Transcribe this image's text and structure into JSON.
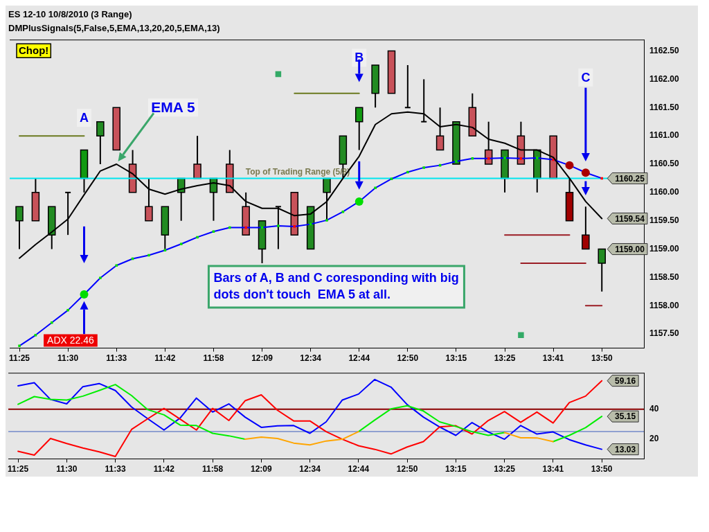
{
  "chart_data": [
    {
      "type": "candlestick",
      "title": "ES 12-10 10/8/2010 (3 Range)",
      "subtitle": "DMPlusSignals(5,False,5,EMA,13,20,20,5,EMA,13)",
      "categories": [
        "11:25",
        null,
        null,
        "11:30",
        null,
        null,
        "11:33",
        null,
        null,
        "11:42",
        null,
        null,
        "11:58",
        null,
        null,
        "12:09",
        null,
        null,
        "12:34",
        null,
        null,
        "12:44",
        null,
        null,
        "12:50",
        null,
        null,
        "13:15",
        null,
        null,
        "13:25",
        null,
        null,
        "13:41",
        null,
        null,
        "13:50"
      ],
      "ohlc": [
        [
          1159.5,
          1159.75,
          1159.0,
          1159.75
        ],
        [
          1160.0,
          1160.25,
          1159.5,
          1159.5
        ],
        [
          1159.25,
          1159.75,
          1159.0,
          1159.75
        ],
        [
          1160.0,
          1160.0,
          1159.25,
          1160.0
        ],
        [
          1160.25,
          1160.75,
          1160.0,
          1160.75
        ],
        [
          1161.0,
          1161.25,
          1160.5,
          1161.25
        ],
        [
          1161.5,
          1161.5,
          1160.75,
          1160.75
        ],
        [
          1160.5,
          1160.75,
          1160.0,
          1160.0
        ],
        [
          1159.75,
          1160.25,
          1159.5,
          1159.5
        ],
        [
          1159.25,
          1159.75,
          1159.0,
          1159.75
        ],
        [
          1160.0,
          1160.25,
          1159.5,
          1160.25
        ],
        [
          1160.5,
          1161.0,
          1160.25,
          1160.25
        ],
        [
          1160.0,
          1160.25,
          1159.5,
          1160.25
        ],
        [
          1160.5,
          1160.75,
          1160.0,
          1160.0
        ],
        [
          1159.75,
          1160.0,
          1159.25,
          1159.25
        ],
        [
          1159.0,
          1159.5,
          1158.75,
          1159.5
        ],
        [
          1159.75,
          1159.75,
          1159.0,
          1159.75
        ],
        [
          1160.0,
          1160.0,
          1159.25,
          1159.25
        ],
        [
          1159.0,
          1159.75,
          1159.0,
          1159.75
        ],
        [
          1160.0,
          1160.25,
          1159.5,
          1160.25
        ],
        [
          1160.5,
          1161.0,
          1160.25,
          1161.0
        ],
        [
          1161.25,
          1161.5,
          1160.75,
          1161.5
        ],
        [
          1161.75,
          1162.25,
          1161.5,
          1162.25
        ],
        [
          1162.5,
          1162.5,
          1161.75,
          1161.75
        ],
        [
          1161.5,
          1162.25,
          1161.5,
          1161.5
        ],
        [
          1161.25,
          1162.0,
          1161.25,
          1161.25
        ],
        [
          1161.0,
          1161.5,
          1160.75,
          1160.75
        ],
        [
          1160.5,
          1161.25,
          1160.5,
          1161.25
        ],
        [
          1161.5,
          1161.75,
          1161.0,
          1161.0
        ],
        [
          1160.75,
          1161.25,
          1160.5,
          1160.5
        ],
        [
          1160.25,
          1160.75,
          1160.0,
          1160.75
        ],
        [
          1161.0,
          1161.25,
          1160.5,
          1160.5
        ],
        [
          1160.25,
          1160.75,
          1160.0,
          1160.75
        ],
        [
          1161.0,
          1161.0,
          1160.25,
          1160.25
        ],
        [
          1160.0,
          1160.25,
          1159.5,
          1159.5
        ],
        [
          1159.25,
          1159.75,
          1159.0,
          1159.0
        ],
        [
          1158.75,
          1159.0,
          1158.25,
          1159.0
        ]
      ],
      "colors": [
        "#228b22",
        "#c8525a",
        "#228b22",
        "#000000",
        "#119911",
        "#228b22",
        "#c8525a",
        "#c8525a",
        "#c8525a",
        "#228b22",
        "#228b22",
        "#c8525a",
        "#228b22",
        "#c8525a",
        "#c8525a",
        "#228b22",
        "#000000",
        "#c8525a",
        "#228b22",
        "#228b22",
        "#228b22",
        "#119911",
        "#228b22",
        "#c8525a",
        "#000000",
        "#000000",
        "#c8525a",
        "#228b22",
        "#c8525a",
        "#c8525a",
        "#228b22",
        "#c8525a",
        "#228b22",
        "#c8525a",
        "#a00000",
        "#a00000",
        "#228b22"
      ],
      "series": [
        {
          "type": "line",
          "color": "#0000ff",
          "marker": "square",
          "values": [
            1157.29,
            1157.48,
            1157.7,
            1157.92,
            1158.2,
            1158.49,
            1158.71,
            1158.83,
            1158.89,
            1158.98,
            1159.09,
            1159.21,
            1159.31,
            1159.38,
            1159.38,
            1159.38,
            1159.41,
            1159.4,
            1159.44,
            1159.51,
            1159.66,
            1159.84,
            1160.08,
            1160.24,
            1160.36,
            1160.44,
            1160.48,
            1160.55,
            1160.6,
            1160.6,
            1160.61,
            1160.6,
            1160.61,
            1160.58,
            1160.48,
            1160.35,
            1160.25
          ],
          "colors": [
            "#00dd00",
            "#00dd00",
            "#00dd00",
            "#00dd00",
            "#00dd00",
            "#00dd00",
            "#00dd00",
            "#00dd00",
            "#00dd00",
            "#00dd00",
            "#00dd00",
            "#00dd00",
            "#00dd00",
            "#00dd00",
            "#ff0000",
            "#00dd00",
            "#00dd00",
            "#ff0000",
            "#00dd00",
            "#00dd00",
            "#00dd00",
            "#00dd00",
            "#00dd00",
            "#00dd00",
            "#00dd00",
            "#00dd00",
            "#00dd00",
            "#00dd00",
            "#00dd00",
            "#ff0000",
            "#00dd00",
            "#ff0000",
            "#00dd00",
            "#ff0000",
            "#ff8c00",
            "#ff8c00",
            "#ff0000"
          ],
          "value_labels": [
            null,
            null,
            null,
            null,
            null,
            null,
            null,
            null,
            null,
            null,
            null,
            null,
            null,
            null,
            null,
            null,
            null,
            null,
            null,
            null,
            null,
            null,
            null,
            null,
            null,
            null,
            null,
            null,
            null,
            null,
            null,
            null,
            null,
            null,
            null,
            null,
            "1160.25"
          ]
        },
        {
          "type": "line",
          "color": "#000000",
          "values": [
            1158.84,
            1159.08,
            1159.3,
            1159.53,
            1159.96,
            1160.38,
            1160.5,
            1160.33,
            1160.06,
            1159.97,
            1160.06,
            1160.12,
            1160.17,
            1160.12,
            1159.84,
            1159.72,
            1159.72,
            1159.59,
            1159.62,
            1159.84,
            1160.25,
            1160.64,
            1161.2,
            1161.39,
            1161.42,
            1161.39,
            1161.16,
            1161.2,
            1161.15,
            1160.94,
            1160.87,
            1160.75,
            1160.75,
            1160.62,
            1160.25,
            1159.84,
            1159.54
          ],
          "value_labels": [
            null,
            null,
            null,
            null,
            null,
            null,
            null,
            null,
            null,
            null,
            null,
            null,
            null,
            null,
            null,
            null,
            null,
            null,
            null,
            null,
            null,
            null,
            null,
            null,
            null,
            null,
            null,
            null,
            null,
            null,
            null,
            null,
            null,
            null,
            null,
            null,
            "1159.54"
          ]
        },
        {
          "type": "line",
          "color": "#6b7a1f",
          "values": [
            1161.0,
            1161.0,
            1161.0,
            1161.0,
            1161.0,
            null,
            null,
            null,
            null,
            null,
            null,
            null,
            null,
            null,
            null,
            null,
            null,
            null,
            null,
            null,
            null,
            null,
            null,
            null,
            null,
            null,
            null,
            null,
            null,
            null,
            null,
            null,
            null,
            null,
            null,
            null,
            null
          ]
        },
        {
          "type": "line",
          "color": "#6b7a1f",
          "values": [
            null,
            null,
            null,
            null,
            null,
            null,
            null,
            null,
            null,
            null,
            null,
            null,
            null,
            null,
            null,
            null,
            null,
            1161.75,
            1161.75,
            1161.75,
            1161.75,
            1161.75,
            null,
            null,
            null,
            null,
            null,
            null,
            null,
            null,
            null,
            null,
            null,
            null,
            null,
            null,
            null
          ]
        },
        {
          "type": "line",
          "color": "#9b1c24",
          "values": [
            null,
            null,
            null,
            null,
            null,
            null,
            null,
            null,
            null,
            null,
            null,
            null,
            null,
            null,
            null,
            null,
            null,
            null,
            null,
            null,
            null,
            null,
            null,
            null,
            null,
            null,
            null,
            null,
            null,
            null,
            1159.25,
            1159.25,
            1159.25,
            1159.25,
            1159.25,
            null,
            null
          ]
        },
        {
          "type": "line",
          "color": "#9b1c24",
          "values": [
            null,
            null,
            null,
            null,
            null,
            null,
            null,
            null,
            null,
            null,
            null,
            null,
            null,
            null,
            null,
            null,
            null,
            null,
            null,
            null,
            null,
            null,
            null,
            null,
            null,
            null,
            null,
            null,
            null,
            null,
            null,
            1158.75,
            1158.75,
            1158.75,
            1158.75,
            1158.75,
            null
          ]
        },
        {
          "type": "line",
          "color": "#9b1c24",
          "values": [
            null,
            null,
            null,
            null,
            null,
            null,
            null,
            null,
            null,
            null,
            null,
            null,
            null,
            null,
            null,
            null,
            null,
            null,
            null,
            null,
            null,
            null,
            null,
            null,
            null,
            null,
            null,
            null,
            null,
            null,
            null,
            null,
            null,
            null,
            null,
            1158.0,
            1158.0
          ]
        },
        {
          "type": "scatter",
          "color": "#00dd00",
          "marker": "circle",
          "values": [
            null,
            null,
            null,
            null,
            1158.2,
            null,
            null,
            null,
            null,
            null,
            null,
            null,
            null,
            null,
            null,
            null,
            null,
            null,
            null,
            null,
            null,
            1159.84,
            null,
            null,
            null,
            null,
            null,
            null,
            null,
            null,
            null,
            null,
            null,
            null,
            1160.48,
            1160.35,
            null
          ],
          "colors": [
            null,
            null,
            null,
            null,
            "#00dd00",
            null,
            null,
            null,
            null,
            null,
            null,
            null,
            null,
            null,
            null,
            null,
            null,
            null,
            null,
            null,
            null,
            "#00dd00",
            null,
            null,
            null,
            null,
            null,
            null,
            null,
            null,
            null,
            null,
            null,
            null,
            "#aa0000",
            "#aa0000",
            null
          ]
        },
        {
          "type": "scatter",
          "color": "#33aa66",
          "marker": "square",
          "values": [
            null,
            null,
            null,
            null,
            null,
            null,
            null,
            null,
            null,
            null,
            null,
            null,
            null,
            null,
            null,
            null,
            1162.09,
            null,
            null,
            null,
            null,
            null,
            null,
            null,
            null,
            null,
            null,
            null,
            null,
            null,
            null,
            1157.48,
            null,
            null,
            null,
            null,
            null
          ]
        }
      ],
      "ylim": [
        1157.25,
        1162.7
      ],
      "yticks": [
        {
          "value": 1157.5,
          "label": "1157.50"
        },
        {
          "value": 1158,
          "label": "1158.00"
        },
        {
          "value": 1158.5,
          "label": "1158.50"
        },
        {
          "value": 1159,
          "label": "1159.00"
        },
        {
          "value": 1159.5,
          "label": "1159.50"
        },
        {
          "value": 1160,
          "label": "1160.00"
        },
        {
          "value": 1160.5,
          "label": "1160.50"
        },
        {
          "value": 1161,
          "label": "1161.00"
        },
        {
          "value": 1161.5,
          "label": "1161.50"
        },
        {
          "value": 1162,
          "label": "1162.00"
        },
        {
          "value": 1162.5,
          "label": "1162.50"
        }
      ],
      "ref_lines": [
        {
          "axis": "y",
          "value": 1160.25,
          "label": "Top of Trading Range (5/8)",
          "color": "#00e5ee"
        }
      ],
      "annotations": [
        "Chop!",
        "A",
        "B",
        "C",
        "EMA 5",
        "Bars of A, B and C coresponding with big dots don't touch  EMA 5 at all.",
        "ADX 22.46",
        "1159.00"
      ]
    },
    {
      "type": "line",
      "categories": [
        "11:25",
        null,
        null,
        "11:30",
        null,
        null,
        "11:33",
        null,
        null,
        "11:42",
        null,
        null,
        "11:58",
        null,
        null,
        "12:09",
        null,
        null,
        "12:34",
        null,
        null,
        "12:44",
        null,
        null,
        "12:50",
        null,
        null,
        "13:15",
        null,
        null,
        "13:25",
        null,
        null,
        "13:41",
        null,
        null,
        "13:50"
      ],
      "series": [
        {
          "color": "#0000ff",
          "values": [
            55.7,
            57.8,
            46.6,
            43.6,
            55.2,
            57.3,
            52.6,
            41.5,
            33.6,
            26.0,
            34.1,
            47.5,
            38.1,
            43.6,
            34.7,
            27.8,
            28.8,
            29.0,
            23.8,
            31.5,
            46.2,
            50.2,
            60.0,
            54.9,
            43.1,
            34.7,
            28.1,
            22.4,
            31.0,
            24.7,
            19.8,
            29.0,
            23.3,
            24.7,
            19.5,
            16.0,
            13.03
          ],
          "value_labels": [
            null,
            null,
            null,
            null,
            null,
            null,
            null,
            null,
            null,
            null,
            null,
            null,
            null,
            null,
            null,
            null,
            null,
            null,
            null,
            null,
            null,
            null,
            null,
            null,
            null,
            null,
            null,
            null,
            null,
            null,
            null,
            null,
            null,
            null,
            null,
            null,
            "13.03"
          ]
        },
        {
          "color": "#ff0000",
          "values": [
            11.7,
            9.1,
            20.3,
            16.9,
            13.9,
            11.3,
            8.2,
            26.4,
            33.6,
            40.5,
            33.3,
            26.0,
            40.5,
            32.4,
            45.7,
            49.7,
            39.3,
            32.1,
            32.1,
            24.9,
            19.8,
            15.4,
            13.0,
            9.9,
            14.6,
            18.2,
            28.1,
            28.9,
            23.3,
            32.4,
            38.4,
            31.2,
            38.1,
            30.7,
            44.5,
            48.8,
            59.16
          ],
          "value_labels": [
            null,
            null,
            null,
            null,
            null,
            null,
            null,
            null,
            null,
            null,
            null,
            null,
            null,
            null,
            null,
            null,
            null,
            null,
            null,
            null,
            null,
            null,
            null,
            null,
            null,
            null,
            null,
            null,
            null,
            null,
            null,
            null,
            null,
            null,
            null,
            null,
            "59.16"
          ]
        },
        {
          "color": "#00ee00",
          "values": [
            43.3,
            48.5,
            46.6,
            46.2,
            48.8,
            52.6,
            56.6,
            49.2,
            39.7,
            36.2,
            29.3,
            29.0,
            23.8,
            22.1,
            19.8,
            null,
            null,
            null,
            null,
            null,
            null,
            24.9,
            32.7,
            40.2,
            42.3,
            38.8,
            31.5,
            28.4,
            24.9,
            22.4,
            24.3,
            null,
            null,
            18.2,
            22.4,
            27.6,
            35.15
          ],
          "value_labels": [
            null,
            null,
            null,
            null,
            null,
            null,
            null,
            null,
            null,
            null,
            null,
            null,
            null,
            null,
            null,
            null,
            null,
            null,
            null,
            null,
            null,
            null,
            null,
            null,
            null,
            null,
            null,
            null,
            null,
            null,
            null,
            null,
            null,
            null,
            null,
            null,
            "35.15"
          ]
        },
        {
          "color": "#ffa500",
          "values": [
            null,
            null,
            null,
            null,
            null,
            null,
            null,
            null,
            null,
            null,
            null,
            null,
            null,
            null,
            19.8,
            21.2,
            20.3,
            17.2,
            16.0,
            18.6,
            19.8,
            24.9,
            null,
            null,
            null,
            null,
            null,
            null,
            null,
            null,
            24.3,
            20.8,
            20.7,
            18.2,
            null,
            null,
            null
          ]
        }
      ],
      "ylim": [
        6.5,
        64.5
      ],
      "yticks": [
        20,
        40
      ],
      "ref_lines": [
        {
          "axis": "y",
          "value": 40,
          "color": "#8b0000"
        },
        {
          "axis": "y",
          "value": 25,
          "color": "#8fa0d0"
        }
      ]
    }
  ]
}
